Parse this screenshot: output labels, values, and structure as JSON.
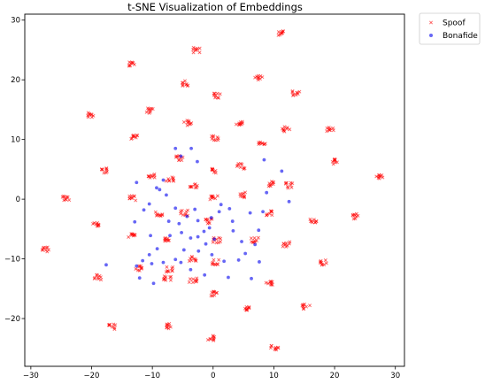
{
  "chart_data": {
    "type": "scatter",
    "title": "t-SNE Visualization of Embeddings",
    "xlabel": "",
    "ylabel": "",
    "xlim": [
      -31,
      31.5
    ],
    "ylim": [
      -28,
      31
    ],
    "xticks": [
      -30,
      -20,
      -10,
      0,
      10,
      20,
      30
    ],
    "yticks": [
      -20,
      -10,
      0,
      10,
      20,
      30
    ],
    "grid": false,
    "legend_position": "outside-top-right",
    "series": [
      {
        "name": "Spoof",
        "color": "#ff0000",
        "marker": "x",
        "clusters": [
          [
            11.3,
            27.8
          ],
          [
            -2.8,
            25
          ],
          [
            -13.3,
            22.7
          ],
          [
            7.5,
            20.3
          ],
          [
            -4.7,
            19.4
          ],
          [
            13.7,
            17.8
          ],
          [
            0.7,
            17.3
          ],
          [
            -10.3,
            14.8
          ],
          [
            -20,
            14.1
          ],
          [
            4.3,
            12.9
          ],
          [
            -4.2,
            12.8
          ],
          [
            12,
            11.7
          ],
          [
            19.3,
            11.6
          ],
          [
            -13,
            10.3
          ],
          [
            0.3,
            10.3
          ],
          [
            8,
            9.4
          ],
          [
            -5.5,
            6.9
          ],
          [
            20,
            6.3
          ],
          [
            4.6,
            5.5
          ],
          [
            -17.7,
            4.8
          ],
          [
            0.4,
            4.8
          ],
          [
            27.4,
            3.8
          ],
          [
            -10,
            3.8
          ],
          [
            -7.1,
            3.3
          ],
          [
            9.8,
            2.6
          ],
          [
            12.6,
            2.3
          ],
          [
            -3.2,
            2.1
          ],
          [
            -24.3,
            0.2
          ],
          [
            4.7,
            0.7
          ],
          [
            0.1,
            0.2
          ],
          [
            -13.2,
            0.2
          ],
          [
            -8.9,
            -2.5
          ],
          [
            -4.8,
            -2.3
          ],
          [
            9.3,
            -2.4
          ],
          [
            23.5,
            -2.9
          ],
          [
            -0.8,
            -3.7
          ],
          [
            16.6,
            -3.5
          ],
          [
            -19.3,
            -4.3
          ],
          [
            -13.4,
            -6.1
          ],
          [
            0.6,
            -6.9
          ],
          [
            -7.6,
            -6.9
          ],
          [
            6.9,
            -6.8
          ],
          [
            12,
            -7.6
          ],
          [
            -27.5,
            -8.4
          ],
          [
            -3.4,
            -10
          ],
          [
            0.3,
            -10.6
          ],
          [
            18.3,
            -10.6
          ],
          [
            -12.4,
            -11.6
          ],
          [
            -7.1,
            -11.8
          ],
          [
            -19,
            -13.1
          ],
          [
            -7.5,
            -13.3
          ],
          [
            -3.3,
            -13.6
          ],
          [
            9.2,
            -14.1
          ],
          [
            0.1,
            -15.9
          ],
          [
            15.3,
            -18
          ],
          [
            5.3,
            -18.3
          ],
          [
            -16.6,
            -21.4
          ],
          [
            -7.6,
            -21.3
          ],
          [
            -0.3,
            -23.3
          ],
          [
            10.1,
            -24.8
          ]
        ]
      },
      {
        "name": "Bonafide",
        "color": "#0000ee",
        "marker": "o",
        "points": [
          [
            -6.2,
            8.5
          ],
          [
            -3.6,
            8.5
          ],
          [
            -5.3,
            7.2
          ],
          [
            -12.6,
            2.8
          ],
          [
            -8.2,
            3.2
          ],
          [
            -2.6,
            6.3
          ],
          [
            -8.8,
            1.6
          ],
          [
            -7.7,
            0.7
          ],
          [
            -10.5,
            -0.8
          ],
          [
            -11.4,
            -1.8
          ],
          [
            -6.2,
            -1.5
          ],
          [
            -3,
            -1.7
          ],
          [
            -9.3,
            1.9
          ],
          [
            -7.3,
            -3.7
          ],
          [
            -4.3,
            -2.9
          ],
          [
            -2.5,
            -3.6
          ],
          [
            -0.3,
            -3.1
          ],
          [
            1,
            -2.1
          ],
          [
            2.7,
            -1.6
          ],
          [
            3.2,
            -3.7
          ],
          [
            6.1,
            -2.3
          ],
          [
            3.3,
            -5.3
          ],
          [
            4.7,
            -7.1
          ],
          [
            6.9,
            -7.6
          ],
          [
            7.5,
            -5.2
          ],
          [
            5.3,
            -9.1
          ],
          [
            7.6,
            -10.5
          ],
          [
            4.2,
            -10.2
          ],
          [
            2.5,
            -13.1
          ],
          [
            6.3,
            -13.3
          ],
          [
            8.2,
            -2.1
          ],
          [
            8.8,
            1.1
          ],
          [
            8.4,
            6.6
          ],
          [
            11.3,
            4.7
          ],
          [
            12.5,
            -0.4
          ],
          [
            -12.9,
            -3.8
          ],
          [
            -10.3,
            -6.1
          ],
          [
            -7.1,
            -6.1
          ],
          [
            -5.2,
            -5.6
          ],
          [
            -3.7,
            -6.5
          ],
          [
            -2.5,
            -6.3
          ],
          [
            -1.5,
            -5.4
          ],
          [
            -1.2,
            -7.5
          ],
          [
            -0.6,
            -4.8
          ],
          [
            0.2,
            -6.7
          ],
          [
            -4.8,
            -8.5
          ],
          [
            -6.2,
            -10.1
          ],
          [
            -9.2,
            -8.3
          ],
          [
            -8.2,
            -10.6
          ],
          [
            -10.5,
            -9.3
          ],
          [
            -11.6,
            -10.3
          ],
          [
            -12.6,
            -11.2
          ],
          [
            -17.6,
            -11
          ],
          [
            -12.1,
            -13.2
          ],
          [
            -10.1,
            -10.8
          ],
          [
            -5.3,
            -10.6
          ],
          [
            -2.4,
            -8.7
          ],
          [
            -0.2,
            -9.3
          ],
          [
            1.8,
            -10.4
          ],
          [
            -3.7,
            -11.8
          ],
          [
            -1.4,
            -12.7
          ],
          [
            -9.8,
            -14.1
          ],
          [
            1.3,
            -0.9
          ],
          [
            -5.6,
            -4.1
          ]
        ]
      }
    ]
  }
}
